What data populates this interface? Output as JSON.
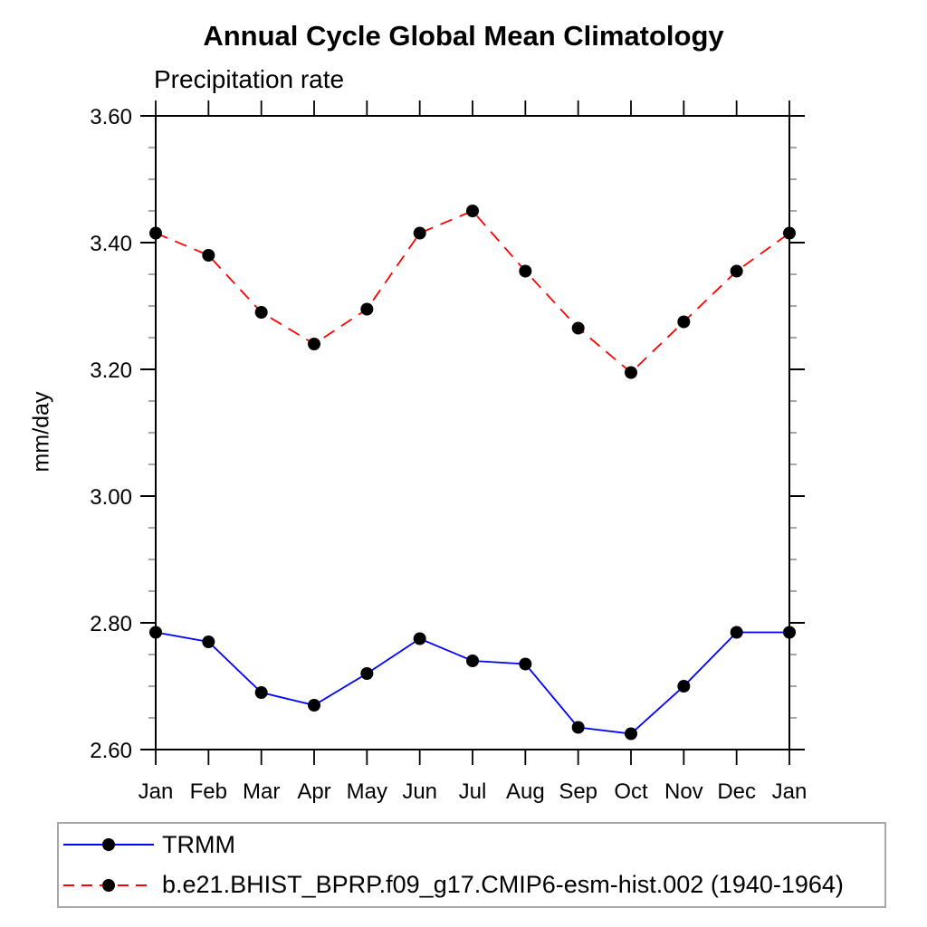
{
  "header": {
    "title": "Annual Cycle Global Mean Climatology",
    "subtitle": "Precipitation rate"
  },
  "chart_data": {
    "type": "line",
    "title": "Annual Cycle Global Mean Climatology",
    "subtitle": "Precipitation rate",
    "ylabel": "mm/day",
    "categories": [
      "Jan",
      "Feb",
      "Mar",
      "Apr",
      "May",
      "Jun",
      "Jul",
      "Aug",
      "Sep",
      "Oct",
      "Nov",
      "Dec",
      "Jan"
    ],
    "ylim": [
      2.6,
      3.6
    ],
    "ytick_major_step": 0.2,
    "ytick_minor_step": 0.05,
    "ytick_labels": [
      "2.60",
      "2.80",
      "3.00",
      "3.20",
      "3.40",
      "3.60"
    ],
    "grid": false,
    "legend": {
      "position": "bottom-left",
      "border_color": "#a8a8a8"
    },
    "series": [
      {
        "name": "TRMM",
        "color": "#0000ff",
        "line_style": "solid",
        "marker": "circle",
        "marker_color": "#000000",
        "values": [
          2.785,
          2.77,
          2.69,
          2.67,
          2.72,
          2.775,
          2.74,
          2.735,
          2.635,
          2.625,
          2.7,
          2.785,
          2.785
        ]
      },
      {
        "name": "b.e21.BHIST_BPRP.f09_g17.CMIP6-esm-hist.002 (1940-1964)",
        "color": "#ff0000",
        "line_style": "dashed",
        "marker": "circle",
        "marker_color": "#000000",
        "values": [
          3.415,
          3.38,
          3.29,
          3.24,
          3.295,
          3.415,
          3.45,
          3.355,
          3.265,
          3.195,
          3.275,
          3.355,
          3.415
        ]
      }
    ],
    "frame_color": "#000000",
    "minor_tick_color": "#777777"
  }
}
